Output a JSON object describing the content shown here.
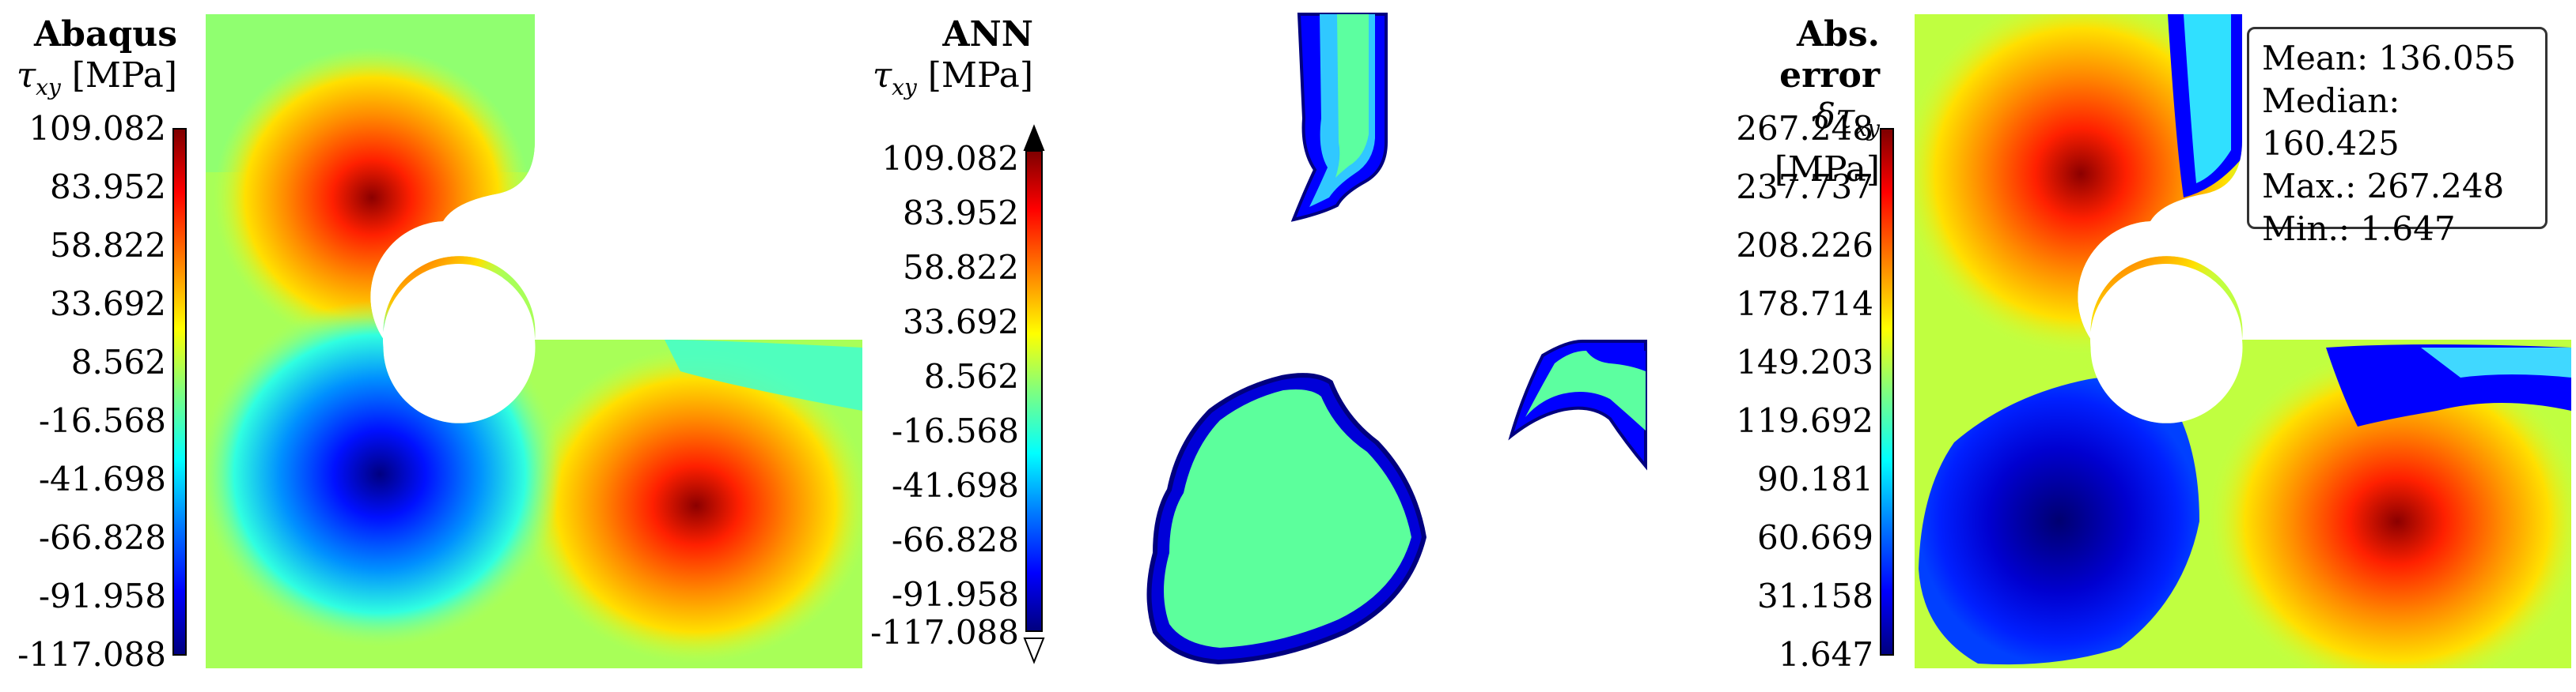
{
  "panels": [
    {
      "title": "Abaqus",
      "quantity": "τxy [MPa]",
      "ticks": [
        "109.082",
        "83.952",
        "58.822",
        "33.692",
        "8.562",
        "-16.568",
        "-41.698",
        "-66.828",
        "-91.958",
        "-117.088"
      ]
    },
    {
      "title": "ANN",
      "quantity": "τxy [MPa]",
      "ticks": [
        "109.082",
        "83.952",
        "58.822",
        "33.692",
        "8.562",
        "-16.568",
        "-41.698",
        "-66.828",
        "-91.958",
        "-117.088"
      ]
    },
    {
      "title": "Abs. error",
      "quantity": "δτxy [MPa]",
      "ticks": [
        "267.248",
        "237.737",
        "208.226",
        "178.714",
        "149.203",
        "119.692",
        "90.181",
        "60.669",
        "31.158",
        "1.647"
      ]
    }
  ],
  "stats": {
    "mean": "Mean: 136.055",
    "median": "Median: 160.425",
    "max": "Max.: 267.248",
    "min": "Min.: 1.647"
  },
  "colors": {
    "colormap": "jet"
  }
}
